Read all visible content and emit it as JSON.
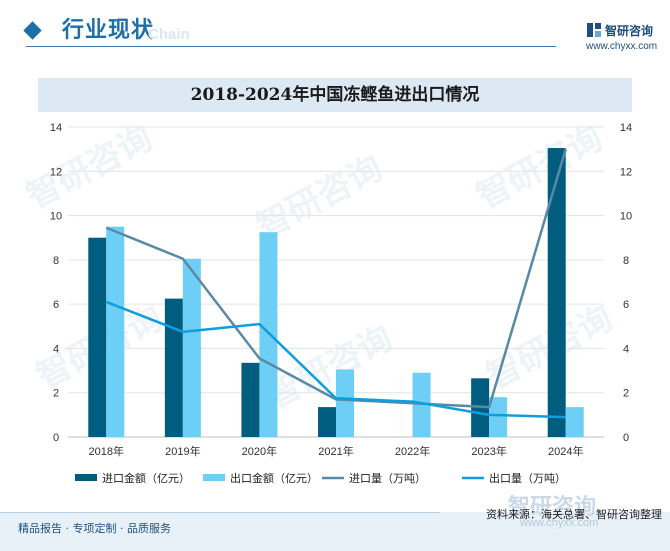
{
  "header": {
    "title": "行业现状",
    "watermark": "Chain",
    "logo_name": "智研咨询",
    "logo_url": "www.chyxx.com"
  },
  "watermark_text": "智研咨询",
  "colors": {
    "import_value": "#005d7f",
    "export_value": "#6dcff6",
    "import_volume": "#5a89a6",
    "export_volume": "#0e9ede",
    "accent": "#1d6fa8"
  },
  "chart_data": {
    "type": "bar",
    "title": "2018-2024年中国冻鲣鱼进出口情况",
    "categories": [
      "2018年",
      "2019年",
      "2020年",
      "2021年",
      "2022年",
      "2023年",
      "2024年"
    ],
    "series": [
      {
        "name": "进口金额（亿元）",
        "type": "bar",
        "axis": "left",
        "values": [
          9.0,
          6.25,
          3.35,
          1.35,
          null,
          2.65,
          13.05
        ]
      },
      {
        "name": "出口金额（亿元）",
        "type": "bar",
        "axis": "left",
        "values": [
          9.5,
          8.05,
          9.25,
          3.05,
          2.9,
          1.8,
          1.35
        ]
      },
      {
        "name": "进口量（万吨）",
        "type": "line",
        "axis": "right",
        "values": [
          9.45,
          8.05,
          3.55,
          1.7,
          null,
          1.35,
          13.0
        ]
      },
      {
        "name": "出口量（万吨）",
        "type": "line",
        "axis": "right",
        "values": [
          6.1,
          4.75,
          5.1,
          1.75,
          1.6,
          1.0,
          0.9
        ]
      }
    ],
    "ylim": [
      0,
      14
    ],
    "y2lim": [
      0,
      14
    ],
    "yticks": [
      0,
      2,
      4,
      6,
      8,
      10,
      12,
      14
    ],
    "grid": true,
    "legend": "bottom"
  },
  "source": "资料来源：海关总署、智研咨询整理",
  "footer": {
    "text": "精品报告 · 专项定制 · 品质服务",
    "logo": "智研咨询",
    "url": "www.chyxx.com"
  }
}
